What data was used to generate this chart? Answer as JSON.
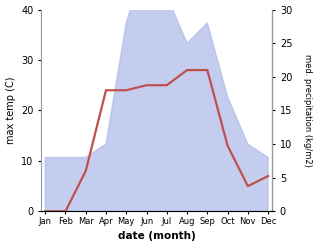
{
  "months": [
    "Jan",
    "Feb",
    "Mar",
    "Apr",
    "May",
    "Jun",
    "Jul",
    "Aug",
    "Sep",
    "Oct",
    "Nov",
    "Dec"
  ],
  "temperature": [
    0,
    0,
    8,
    24,
    24,
    25,
    25,
    28,
    28,
    13,
    5,
    7
  ],
  "precipitation": [
    8,
    8,
    8,
    10,
    28,
    38,
    32,
    25,
    28,
    17,
    10,
    8
  ],
  "temp_color": "#c0504d",
  "precip_fill_color": "#adb9e8",
  "temp_ylim": [
    0,
    40
  ],
  "precip_ylim": [
    0,
    30
  ],
  "xlabel": "date (month)",
  "ylabel_left": "max temp (C)",
  "ylabel_right": "med. precipitation (kg/m2)",
  "background_color": "#ffffff",
  "grid_color": "#d0d0d0"
}
